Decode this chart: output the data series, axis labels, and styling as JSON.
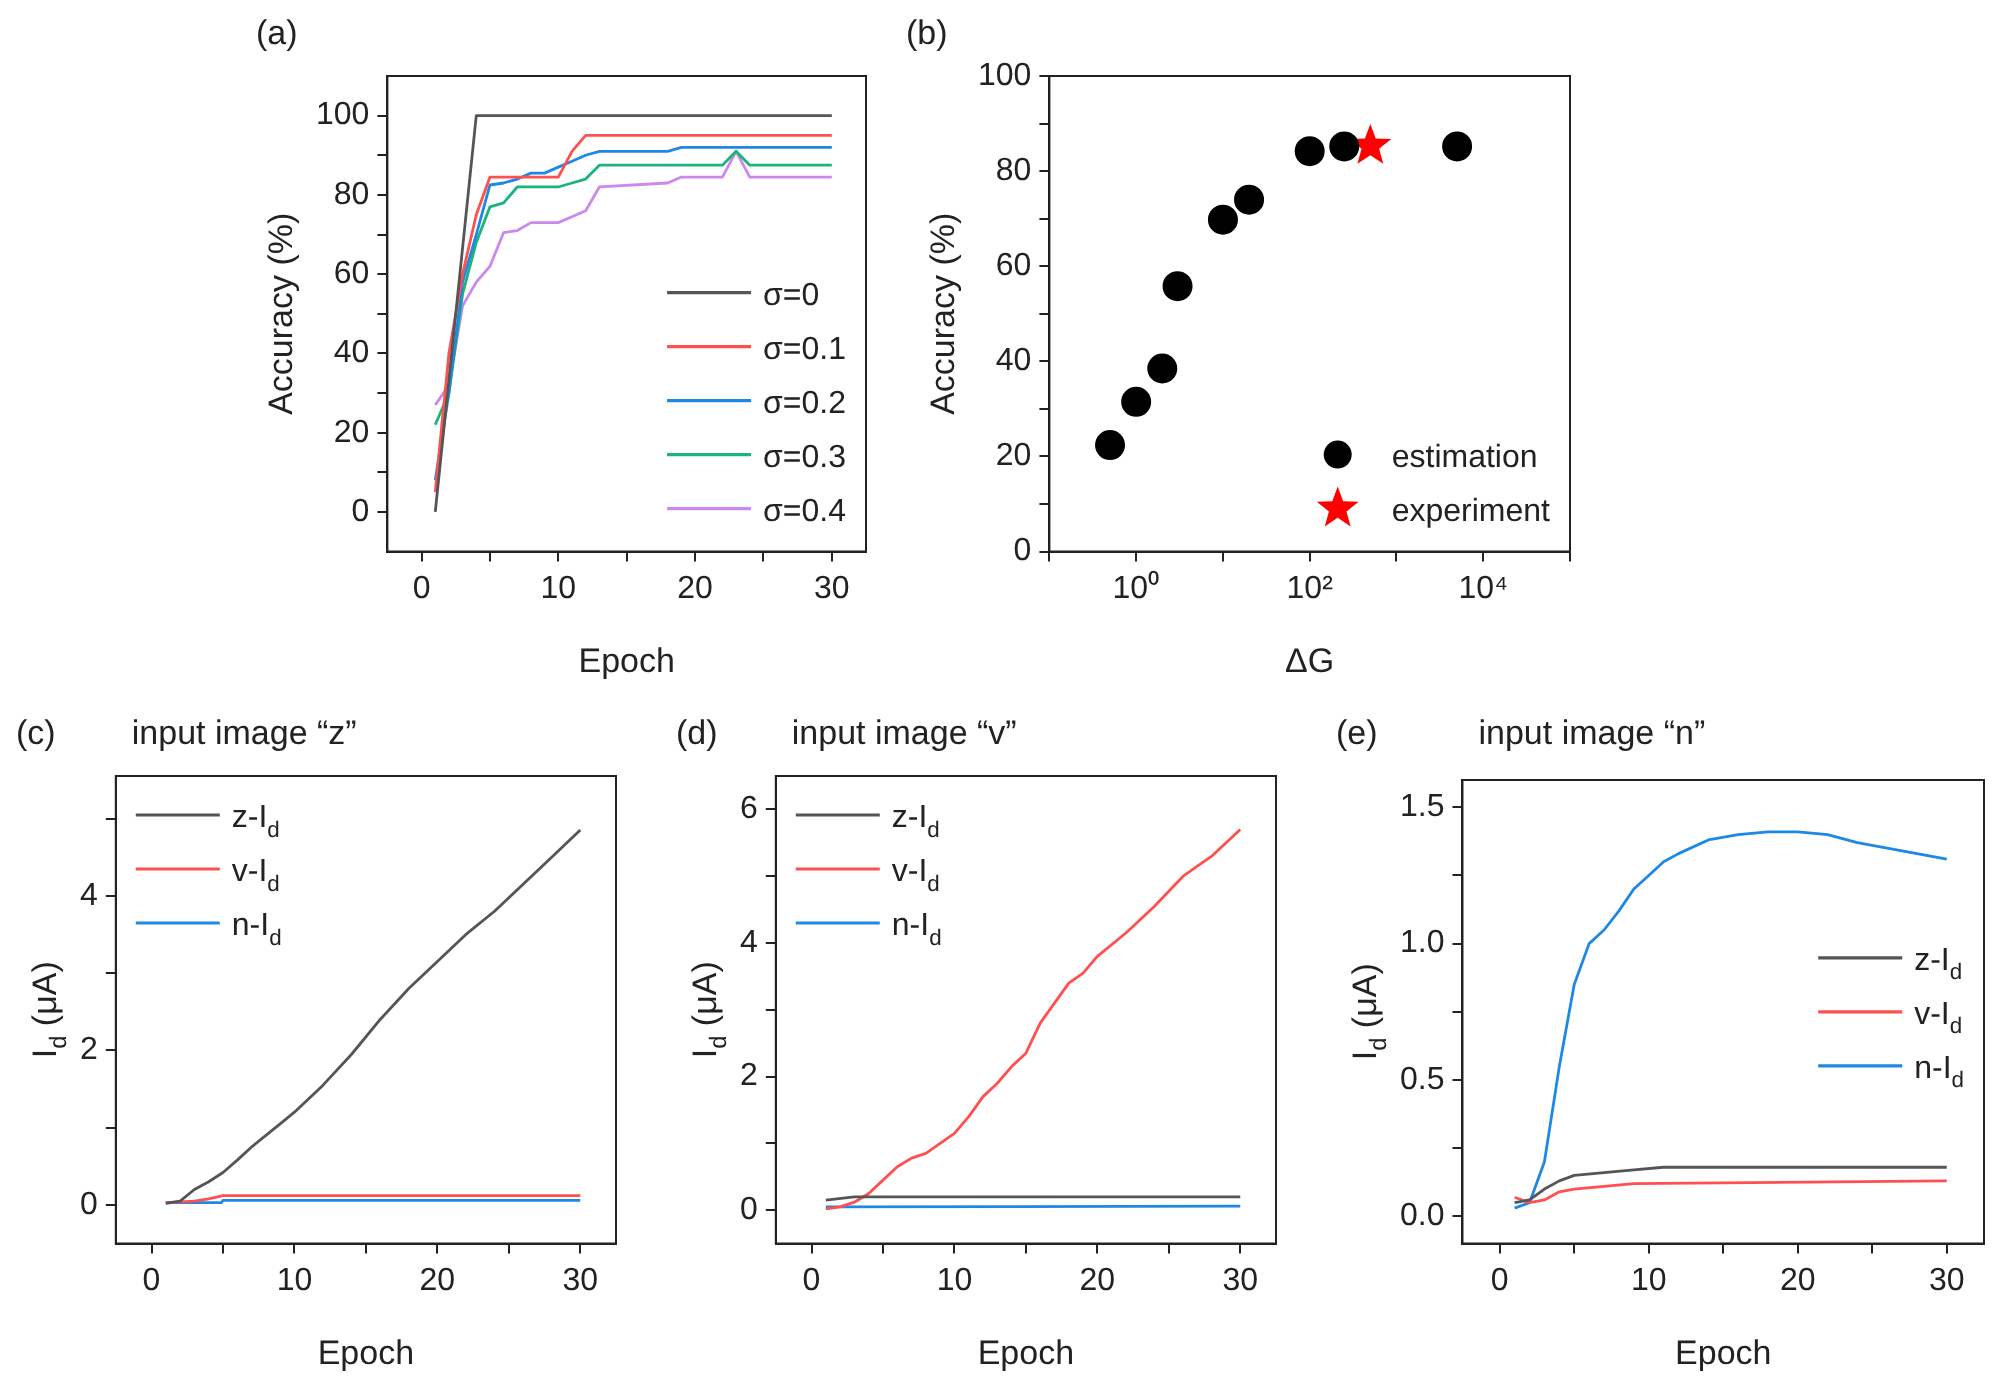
{
  "chart_data": [
    {
      "type": "line",
      "title": "(a)",
      "xlabel": "Epoch",
      "ylabel": "Accuracy (%)",
      "xlim": [
        -2.5,
        32.5
      ],
      "ylim": [
        -10,
        110
      ],
      "xticks": [
        0,
        {
          "value": 5,
          "label": null
        },
        10,
        {
          "value": 15,
          "label": null
        },
        20,
        {
          "value": 25,
          "label": null
        },
        30
      ],
      "yticks": [
        0,
        {
          "value": 10,
          "label": null
        },
        20,
        {
          "value": 30,
          "label": null
        },
        40,
        {
          "value": 50,
          "label": null
        },
        60,
        {
          "value": 70,
          "label": null
        },
        80,
        {
          "value": 90,
          "label": null
        },
        100
      ],
      "marker": "none",
      "legend": "bottom right",
      "series": [
        {
          "name": "σ=0",
          "color": "#555555",
          "x": [
            1,
            4,
            30
          ],
          "values": [
            0,
            100,
            100
          ]
        },
        {
          "name": "σ=0.1",
          "color": "#ff5050",
          "x": [
            1,
            2,
            3,
            4,
            5,
            10,
            11,
            12,
            30
          ],
          "values": [
            5,
            40,
            60,
            75,
            84.5,
            84.5,
            91,
            95,
            95
          ]
        },
        {
          "name": "σ=0.2",
          "color": "#1e88e5",
          "x": [
            1,
            2,
            3,
            4,
            5,
            6,
            7,
            8,
            9,
            10,
            11,
            12,
            13,
            18,
            19,
            30
          ],
          "values": [
            8,
            30,
            58,
            70,
            82.5,
            83,
            84,
            85.5,
            85.5,
            87,
            88.5,
            90,
            91,
            91,
            92,
            92
          ]
        },
        {
          "name": "σ=0.3",
          "color": "#1db37a",
          "x": [
            1,
            2,
            3,
            4,
            5,
            6,
            7,
            10,
            11,
            12,
            13,
            22,
            23,
            24,
            30
          ],
          "values": [
            22,
            30,
            55,
            68,
            77,
            78,
            82,
            82,
            83,
            84,
            87.5,
            87.5,
            91,
            87.5,
            87.5
          ]
        },
        {
          "name": "σ=0.4",
          "color": "#cc88ee",
          "x": [
            1,
            2,
            3,
            4,
            5,
            6,
            7,
            8,
            10,
            11,
            12,
            13,
            18,
            19,
            22,
            23,
            24,
            30
          ],
          "values": [
            27,
            32,
            52,
            58,
            62,
            70.5,
            71,
            73,
            73,
            74.5,
            76,
            82,
            83,
            84.5,
            84.5,
            91,
            84.5,
            84.5
          ]
        }
      ]
    },
    {
      "type": "scatter",
      "title": "(b)",
      "xlabel": "ΔG",
      "ylabel": "Accuracy (%)",
      "log": "x",
      "xlim": [
        0.1,
        100000
      ],
      "ylim": [
        0,
        100
      ],
      "xticks": [
        {
          "value": 0.1,
          "label": null
        },
        {
          "value": 1,
          "label": "10⁰"
        },
        {
          "value": 10,
          "label": null
        },
        {
          "value": 100,
          "label": "10²"
        },
        {
          "value": 1000,
          "label": null
        },
        {
          "value": 10000,
          "label": "10⁴"
        },
        {
          "value": 100000,
          "label": null
        }
      ],
      "yticks": [
        0,
        {
          "value": 10,
          "label": null
        },
        20,
        {
          "value": 30,
          "label": null
        },
        40,
        {
          "value": 50,
          "label": null
        },
        60,
        {
          "value": 70,
          "label": null
        },
        80,
        {
          "value": 90,
          "label": null
        },
        100
      ],
      "legend": "bottom right",
      "series": [
        {
          "name": "estimation",
          "color": "#000000",
          "marker": "circle",
          "x": [
            0.5,
            1,
            2,
            3,
            10,
            20,
            100,
            250,
            5000
          ],
          "values": [
            22.4,
            31.5,
            38.5,
            55.8,
            69.8,
            74,
            84.2,
            85.2,
            85.2
          ]
        },
        {
          "name": "experiment",
          "color": "#ff0000",
          "marker": "star",
          "x": [
            500
          ],
          "values": [
            85.3
          ]
        }
      ]
    },
    {
      "type": "line",
      "title": "(c)",
      "subtitle": "input image “z”",
      "xlabel": "Epoch",
      "ylabel": "I$_{d}$ (μA)",
      "xlim": [
        -2.5,
        32.5
      ],
      "ylim": [
        -0.5,
        5.55
      ],
      "xticks": [
        0,
        {
          "value": 5,
          "label": null
        },
        10,
        {
          "value": 15,
          "label": null
        },
        20,
        {
          "value": 25,
          "label": null
        },
        30
      ],
      "yticks": [
        0,
        {
          "value": 1,
          "label": null
        },
        2,
        {
          "value": 3,
          "label": null
        },
        4,
        {
          "value": 5,
          "label": null
        }
      ],
      "marker": "none",
      "legend": "top left",
      "series": [
        {
          "name": "z-I$_{d}$",
          "color": "#555555",
          "x": [
            1,
            2,
            3,
            4,
            5,
            6,
            7,
            8,
            9,
            10,
            12,
            14,
            16,
            18,
            20,
            22,
            24,
            26,
            28,
            30
          ],
          "values": [
            0.02,
            0.05,
            0.2,
            0.3,
            0.42,
            0.58,
            0.75,
            0.9,
            1.05,
            1.2,
            1.55,
            1.95,
            2.4,
            2.8,
            3.15,
            3.5,
            3.8,
            4.15,
            4.5,
            4.85
          ]
        },
        {
          "name": "v-I$_{d}$",
          "color": "#ff5050",
          "x": [
            1,
            3,
            4,
            5,
            30
          ],
          "values": [
            0.03,
            0.05,
            0.08,
            0.12,
            0.12
          ]
        },
        {
          "name": "n-I$_{d}$",
          "color": "#1e88e5",
          "x": [
            1,
            4.9,
            5,
            30
          ],
          "values": [
            0.03,
            0.03,
            0.06,
            0.06
          ]
        }
      ]
    },
    {
      "type": "line",
      "title": "(d)",
      "subtitle": "input image “v”",
      "xlabel": "Epoch",
      "ylabel": "I$_{d}$ (μA)",
      "xlim": [
        -2.5,
        32.5
      ],
      "ylim": [
        -0.5,
        6.5
      ],
      "xticks": [
        0,
        {
          "value": 5,
          "label": null
        },
        10,
        {
          "value": 15,
          "label": null
        },
        20,
        {
          "value": 25,
          "label": null
        },
        30
      ],
      "yticks": [
        0,
        {
          "value": 1,
          "label": null
        },
        2,
        {
          "value": 3,
          "label": null
        },
        4,
        {
          "value": 5,
          "label": null
        },
        6
      ],
      "marker": "none",
      "legend": "top left",
      "series": [
        {
          "name": "z-I$_{d}$",
          "color": "#555555",
          "x": [
            1,
            3,
            30
          ],
          "values": [
            0.15,
            0.2,
            0.2
          ]
        },
        {
          "name": "v-I$_{d}$",
          "color": "#ff5050",
          "x": [
            1,
            2,
            3,
            4,
            5,
            6,
            7,
            8,
            9,
            10,
            11,
            12,
            13,
            14,
            15,
            16,
            17,
            18,
            19,
            20,
            22,
            24,
            26,
            28,
            30
          ],
          "values": [
            0.02,
            0.05,
            0.12,
            0.25,
            0.45,
            0.65,
            0.78,
            0.85,
            1.0,
            1.15,
            1.4,
            1.7,
            1.9,
            2.15,
            2.35,
            2.8,
            3.1,
            3.4,
            3.55,
            3.8,
            4.15,
            4.55,
            5.0,
            5.3,
            5.7
          ]
        },
        {
          "name": "n-I$_{d}$",
          "color": "#1e88e5",
          "x": [
            1,
            30
          ],
          "values": [
            0.05,
            0.06
          ]
        }
      ]
    },
    {
      "type": "line",
      "title": "(e)",
      "subtitle": "input image “n”",
      "xlabel": "Epoch",
      "ylabel": "I$_{d}$ (μA)",
      "xlim": [
        -2.5,
        32.5
      ],
      "ylim": [
        -0.1,
        1.6
      ],
      "xticks": [
        0,
        {
          "value": 5,
          "label": null
        },
        10,
        {
          "value": 15,
          "label": null
        },
        20,
        {
          "value": 25,
          "label": null
        },
        30
      ],
      "yticks": [
        {
          "value": 0,
          "label": "0.0"
        },
        {
          "value": 0.25,
          "label": null
        },
        0.5,
        {
          "value": 0.75,
          "label": null
        },
        {
          "value": 1,
          "label": "1.0"
        },
        {
          "value": 1.25,
          "label": null
        },
        1.5
      ],
      "marker": "none",
      "legend": "right",
      "series": [
        {
          "name": "z-I$_{d}$",
          "color": "#555555",
          "x": [
            1,
            2,
            3,
            4,
            5,
            7,
            9,
            11,
            30
          ],
          "values": [
            0.05,
            0.06,
            0.1,
            0.13,
            0.15,
            0.16,
            0.17,
            0.18,
            0.18
          ]
        },
        {
          "name": "v-I$_{d}$",
          "color": "#ff5050",
          "x": [
            1,
            2,
            3,
            4,
            5,
            7,
            9,
            30
          ],
          "values": [
            0.07,
            0.05,
            0.06,
            0.09,
            0.1,
            0.11,
            0.12,
            0.13
          ]
        },
        {
          "name": "n-I$_{d}$",
          "color": "#1e88e5",
          "x": [
            1,
            2,
            3,
            4,
            5,
            6,
            7,
            8,
            9,
            10,
            11,
            12,
            14,
            16,
            18,
            20,
            22,
            24,
            26,
            28,
            30
          ],
          "values": [
            0.03,
            0.05,
            0.2,
            0.55,
            0.85,
            1.0,
            1.05,
            1.12,
            1.2,
            1.25,
            1.3,
            1.33,
            1.38,
            1.4,
            1.41,
            1.41,
            1.4,
            1.37,
            1.35,
            1.33,
            1.31
          ]
        }
      ]
    }
  ]
}
